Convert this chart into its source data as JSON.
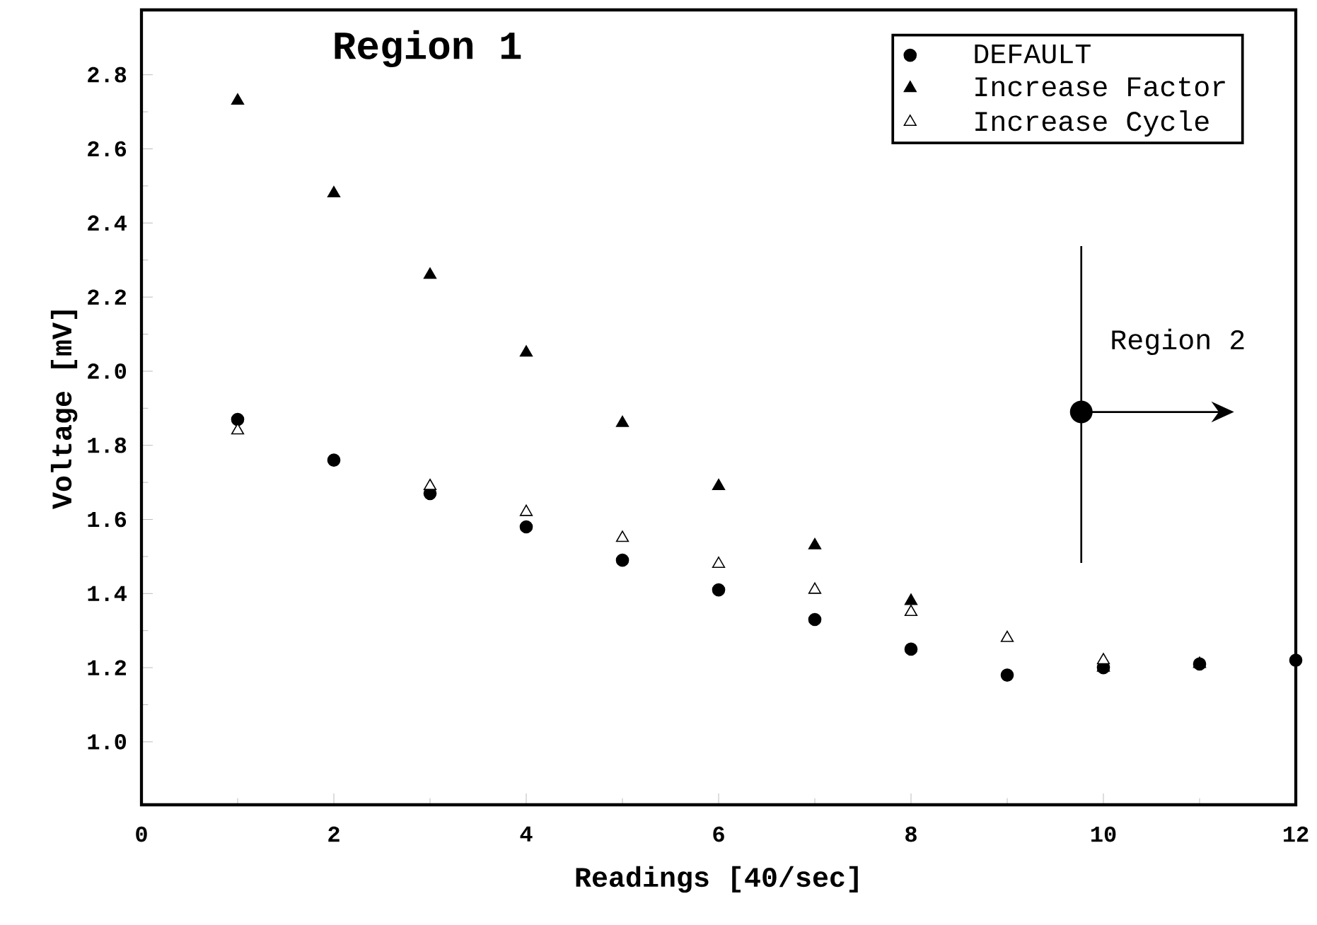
{
  "chart_data": {
    "type": "scatter",
    "xlabel": "Readings [40/sec]",
    "ylabel": "Voltage [mV]",
    "x": [
      1,
      2,
      3,
      4,
      5,
      6,
      7,
      8,
      9,
      10,
      11,
      12
    ],
    "series": [
      {
        "name": "DEFAULT",
        "color": "#000000",
        "marker": "circle",
        "values": [
          1.87,
          1.76,
          1.67,
          1.58,
          1.49,
          1.41,
          1.33,
          1.25,
          1.18,
          1.2,
          1.21,
          1.22
        ]
      },
      {
        "name": "Increase Factor",
        "color": "#000000",
        "marker": "triangle",
        "values": [
          2.73,
          2.48,
          2.26,
          2.05,
          1.86,
          1.69,
          1.53,
          1.38,
          null,
          1.2,
          1.21,
          null
        ]
      },
      {
        "name": "Increase Cycle",
        "color": "#ffffff",
        "marker": "triangle",
        "values": [
          1.84,
          null,
          1.69,
          1.62,
          1.55,
          1.48,
          1.41,
          1.35,
          1.28,
          1.22,
          null,
          null
        ]
      }
    ],
    "xlim": [
      0,
      12
    ],
    "xticks": [
      0,
      2,
      4,
      6,
      8,
      10,
      12
    ],
    "ylim": [
      0.83,
      2.975
    ],
    "yticks": [
      {
        "value": 1.0,
        "label": "1.0"
      },
      {
        "value": 1.2,
        "label": "1.2"
      },
      {
        "value": 1.4,
        "label": "1.4"
      },
      {
        "value": 1.6,
        "label": "1.6"
      },
      {
        "value": 1.8,
        "label": "1.8"
      },
      {
        "value": 2.0,
        "label": "2.0"
      },
      {
        "value": 2.2,
        "label": "2.2"
      },
      {
        "value": 2.4,
        "label": "2.4"
      },
      {
        "value": 2.6,
        "label": "2.6"
      },
      {
        "value": 2.8,
        "label": "2.8"
      }
    ],
    "annotations": [
      "Region 1",
      {
        "text": "Region 2",
        "x": 9.77,
        "y": 1.89
      }
    ],
    "legend": "top right",
    "grid": false
  }
}
